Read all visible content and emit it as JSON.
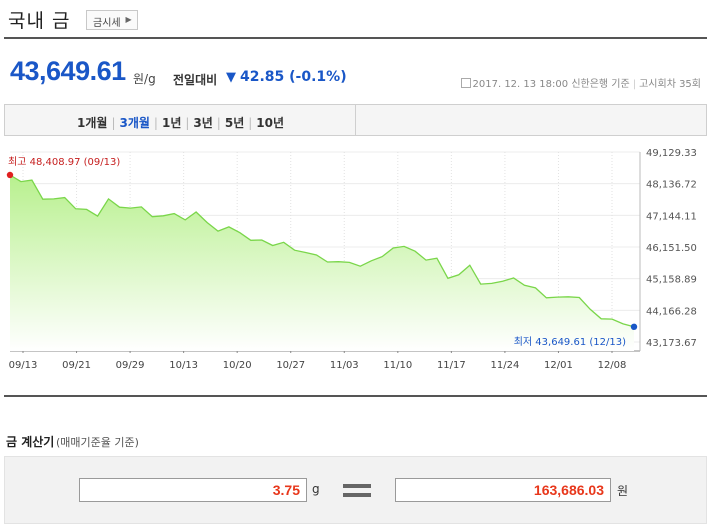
{
  "header": {
    "title": "국내 금",
    "badge": "금시세"
  },
  "summary": {
    "price": "43,649.61",
    "unit": "원/g",
    "compare_label": "전일대비",
    "change": "42.85 (-0.1%)",
    "date": "2017. 12. 13 18:00",
    "source": "신한은행 기준",
    "notice": "고시회차 35회"
  },
  "tabs": [
    "1개월",
    "3개월",
    "1년",
    "3년",
    "5년",
    "10년"
  ],
  "active_tab": "3개월",
  "chart_data": {
    "type": "area",
    "x_tick_labels": [
      "09/13",
      "09/21",
      "09/29",
      "10/13",
      "10/20",
      "10/27",
      "11/03",
      "11/10",
      "11/17",
      "11/24",
      "12/01",
      "12/08"
    ],
    "y_tick_labels": [
      "49,129.33",
      "48,136.72",
      "47,144.11",
      "46,151.50",
      "45,158.89",
      "44,166.28",
      "43,173.67"
    ],
    "ylim": [
      43173.67,
      49129.33
    ],
    "high_label": "최고  48,408.97 (09/13)",
    "low_label": "최저  43,649.61 (12/13)",
    "values": [
      48409,
      48200,
      48250,
      47650,
      47660,
      47700,
      47350,
      47330,
      47120,
      47660,
      47400,
      47370,
      47410,
      47100,
      47130,
      47200,
      47000,
      47250,
      46920,
      46650,
      46780,
      46600,
      46360,
      46370,
      46200,
      46300,
      46050,
      45980,
      45900,
      45680,
      45690,
      45670,
      45550,
      45720,
      45850,
      46120,
      46170,
      46020,
      45740,
      45800,
      45170,
      45280,
      45580,
      44990,
      45010,
      45080,
      45180,
      44950,
      44870,
      44560,
      44580,
      44590,
      44570,
      44200,
      43900,
      43890,
      43740,
      43650
    ],
    "colors": {
      "line": "#7ad64a",
      "fill_top": "#b8f08e",
      "fill_bottom": "#ffffff",
      "high_dot": "#e02020",
      "low_dot": "#1a57c7",
      "low_text": "#1a57c7",
      "high_text": "#c62020"
    }
  },
  "calculator": {
    "title": "금 계산기",
    "subtitle": "(매매기준율 기준)",
    "amount": "3.75",
    "amount_unit": "g",
    "result": "163,686.03",
    "result_unit": "원"
  }
}
